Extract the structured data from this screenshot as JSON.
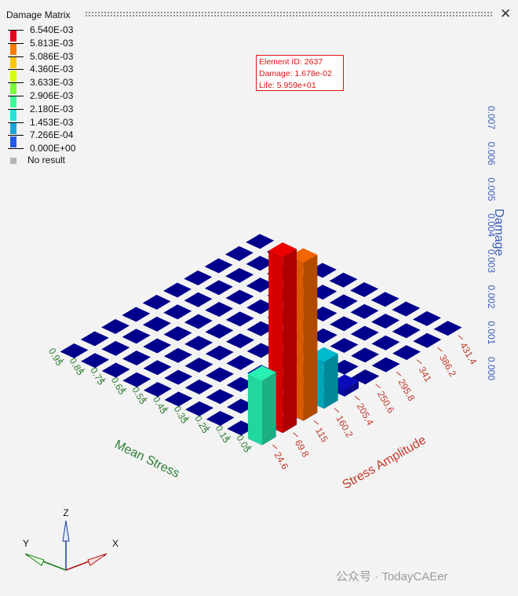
{
  "window": {
    "title": "Damage Matrix",
    "close_glyph": "✕"
  },
  "legend": {
    "levels": [
      "6.540E-03",
      "5.813E-03",
      "5.086E-03",
      "4.360E-03",
      "3.633E-03",
      "2.906E-03",
      "2.180E-03",
      "1.453E-03",
      "7.266E-04",
      "0.000E+00"
    ],
    "colors": [
      "#e8001c",
      "#ff7a00",
      "#ffc800",
      "#d8ff00",
      "#7aff3a",
      "#3aff98",
      "#1ee6d8",
      "#1aa6d8",
      "#1f5ae8",
      "#0000b8"
    ],
    "no_result_label": "No result"
  },
  "tooltip": {
    "element": "Element ID: 2637",
    "damage": "Damage: 1.678e-02",
    "life": "Life: 5.959e+01"
  },
  "chart_data": {
    "type": "bar",
    "x_name": "Stress Amplitude",
    "y_name": "Mean Stress",
    "z_name": "Damage",
    "x_ticks": [
      "24.6",
      "69.8",
      "115",
      "160.2",
      "205.4",
      "250.6",
      "295.8",
      "341",
      "386.2",
      "431.4"
    ],
    "y_ticks": [
      "0.05",
      "0.15",
      "0.25",
      "0.35",
      "0.45",
      "0.55",
      "0.65",
      "0.75",
      "0.85",
      "0.95"
    ],
    "z_ticks": [
      "0.000",
      "0.001",
      "0.002",
      "0.003",
      "0.004",
      "0.005",
      "0.006",
      "0.007"
    ],
    "zlim": [
      0,
      0.007
    ],
    "bars": [
      {
        "stress_amplitude": "24.6",
        "mean_stress": "0.05",
        "damage": 0.0018,
        "color": "#22d6a0"
      },
      {
        "stress_amplitude": "69.8",
        "mean_stress": "0.05",
        "damage": 0.0049,
        "color": "#d40000"
      },
      {
        "stress_amplitude": "115",
        "mean_stress": "0.05",
        "damage": 0.0044,
        "color": "#d85a00"
      },
      {
        "stress_amplitude": "160.2",
        "mean_stress": "0.05",
        "damage": 0.0013,
        "color": "#00a6b8"
      },
      {
        "stress_amplitude": "205.4",
        "mean_stress": "0.05",
        "damage": 0.0002,
        "color": "#0a0aa8"
      }
    ],
    "base_color": "#00008c",
    "colors": {
      "x_axis": "#c0392b",
      "y_axis": "#2e7d32",
      "z_axis": "#3a5cb8"
    }
  },
  "triad": {
    "x": "X",
    "y": "Y",
    "z": "Z"
  },
  "watermark": "公众号 · TodayCAEer"
}
